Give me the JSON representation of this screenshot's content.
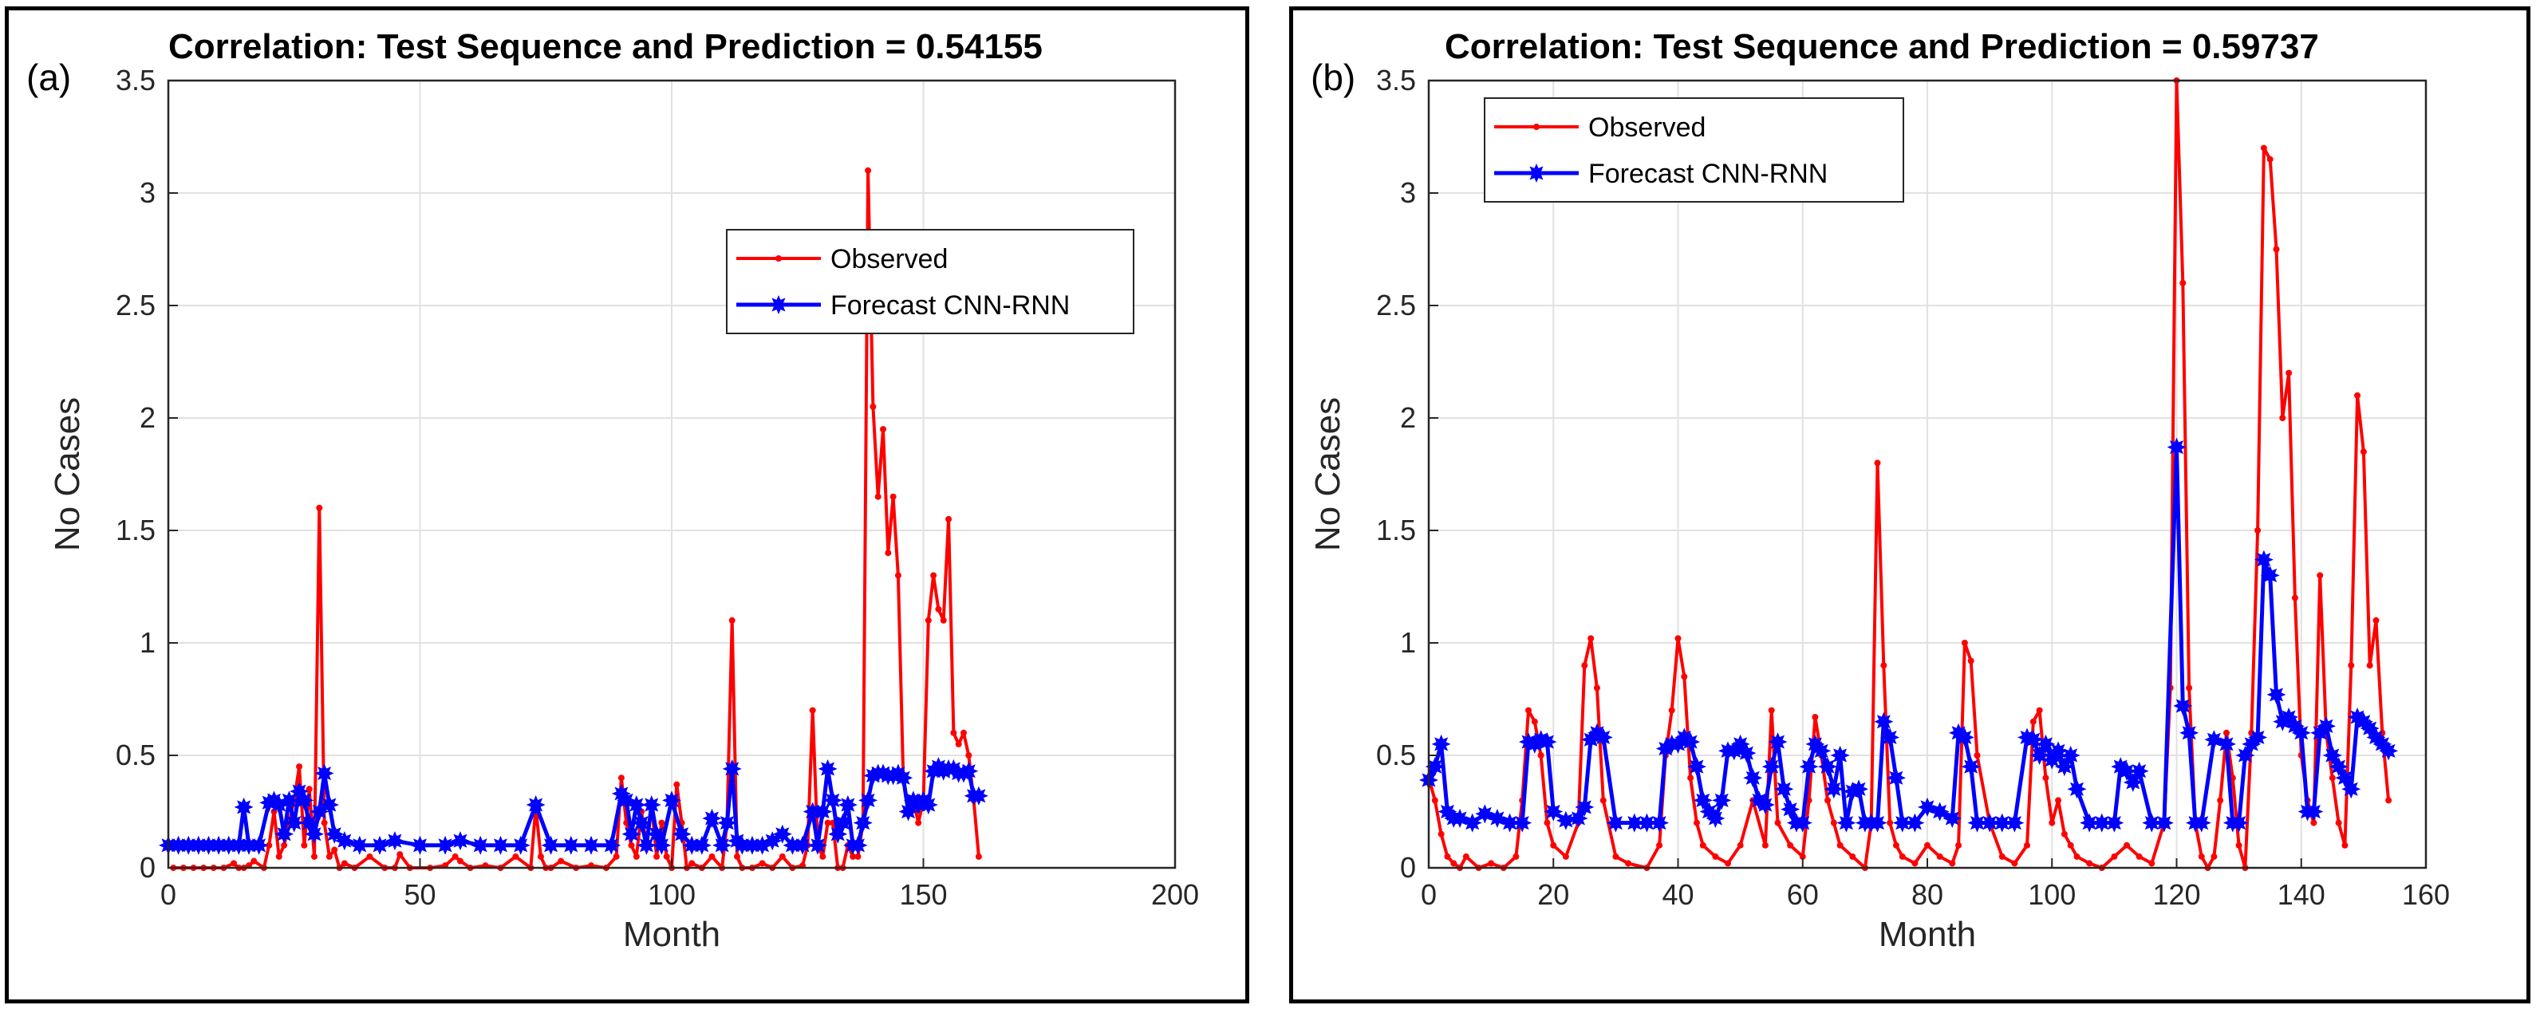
{
  "chart_data": [
    {
      "type": "line",
      "panel_tag": "(a)",
      "title": "Correlation: Test Sequence and  Prediction = 0.54155",
      "xlabel": "Month",
      "ylabel": "No Cases",
      "xlim": [
        0,
        200
      ],
      "ylim": [
        0,
        3.5
      ],
      "xticks": [
        0,
        50,
        100,
        150,
        200
      ],
      "yticks": [
        0,
        0.5,
        1,
        1.5,
        2,
        2.5,
        3,
        3.5
      ],
      "xtick_labels": [
        "0",
        "50",
        "100",
        "150",
        "200"
      ],
      "ytick_labels": [
        "0",
        "0.5",
        "1",
        "1.5",
        "2",
        "2.5",
        "3",
        "3.5"
      ],
      "grid": true,
      "legend_position": "upper-right-center",
      "colors": {
        "observed": "#ff0000",
        "forecast": "#0000ff"
      },
      "series": [
        {
          "name": "Observed",
          "marker": "dot",
          "x": [
            1,
            3,
            5,
            7,
            9,
            11,
            13,
            14,
            15,
            16,
            17,
            19,
            20,
            21,
            22,
            23,
            24,
            25,
            26,
            27,
            28,
            29,
            30,
            31,
            32,
            33,
            34,
            35,
            37,
            40,
            43,
            45,
            46,
            48,
            52,
            55,
            57,
            58,
            60,
            63,
            66,
            69,
            72,
            73,
            74,
            75,
            76,
            78,
            81,
            84,
            87,
            89,
            90,
            91,
            92,
            93,
            94,
            95,
            96,
            97,
            98,
            99,
            100,
            101,
            102,
            103,
            104,
            106,
            108,
            110,
            111,
            112,
            113,
            114,
            116,
            118,
            120,
            122,
            124,
            126,
            127,
            128,
            129,
            130,
            131,
            132,
            133,
            134,
            135,
            136,
            137,
            138,
            139,
            140,
            141,
            142,
            143,
            144,
            145,
            146,
            147,
            148,
            149,
            150,
            151,
            152,
            153,
            154,
            155,
            156,
            157,
            158,
            159,
            160,
            161
          ],
          "y": [
            0,
            0,
            0,
            0,
            0,
            0,
            0.02,
            0,
            0,
            0.01,
            0.03,
            0,
            0.1,
            0.25,
            0.05,
            0.1,
            0.2,
            0.3,
            0.45,
            0.1,
            0.35,
            0.05,
            1.6,
            0.2,
            0.05,
            0.08,
            0,
            0.02,
            0,
            0.05,
            0,
            0,
            0.06,
            0,
            0,
            0.01,
            0.05,
            0.03,
            0,
            0.01,
            0,
            0.05,
            0,
            0.27,
            0.05,
            0,
            0,
            0.03,
            0,
            0.01,
            0,
            0.05,
            0.4,
            0.2,
            0.1,
            0.05,
            0.25,
            0.1,
            0.28,
            0.05,
            0.2,
            0.05,
            0,
            0.37,
            0.2,
            0,
            0.02,
            0,
            0.05,
            0,
            0.2,
            1.1,
            0.05,
            0,
            0,
            0.02,
            0,
            0.05,
            0,
            0.01,
            0.1,
            0.7,
            0.1,
            0.05,
            0.2,
            0.2,
            0,
            0,
            0.1,
            0.05,
            0.05,
            0.2,
            3.1,
            2.05,
            1.65,
            1.95,
            1.4,
            1.65,
            1.3,
            0.4,
            0.25,
            0.3,
            0.2,
            0.3,
            1.1,
            1.3,
            1.15,
            1.1,
            1.55,
            0.6,
            0.55,
            0.6,
            0.5,
            0.3,
            0.05
          ]
        },
        {
          "name": "Forecast CNN-RNN",
          "marker": "star",
          "x": [
            0,
            2,
            4,
            6,
            8,
            10,
            12,
            14,
            15,
            16,
            18,
            20,
            21,
            22,
            23,
            24,
            25,
            26,
            27,
            28,
            29,
            30,
            31,
            32,
            33,
            35,
            38,
            42,
            45,
            50,
            55,
            58,
            62,
            66,
            70,
            73,
            76,
            80,
            84,
            88,
            90,
            91,
            92,
            93,
            94,
            95,
            96,
            97,
            98,
            100,
            102,
            104,
            106,
            108,
            110,
            111,
            112,
            113,
            114,
            116,
            118,
            120,
            122,
            124,
            126,
            128,
            129,
            130,
            131,
            132,
            133,
            134,
            135,
            136,
            137,
            138,
            139,
            140,
            141,
            142,
            143,
            144,
            145,
            146,
            147,
            148,
            149,
            150,
            151,
            152,
            153,
            154,
            155,
            156,
            157,
            158,
            159,
            160,
            161
          ],
          "y": [
            0.1,
            0.1,
            0.1,
            0.1,
            0.1,
            0.1,
            0.1,
            0.1,
            0.27,
            0.1,
            0.1,
            0.29,
            0.3,
            0.28,
            0.15,
            0.3,
            0.2,
            0.34,
            0.3,
            0.2,
            0.15,
            0.25,
            0.42,
            0.28,
            0.15,
            0.12,
            0.1,
            0.1,
            0.12,
            0.1,
            0.1,
            0.12,
            0.1,
            0.1,
            0.1,
            0.28,
            0.1,
            0.1,
            0.1,
            0.1,
            0.33,
            0.3,
            0.15,
            0.28,
            0.2,
            0.1,
            0.28,
            0.15,
            0.1,
            0.3,
            0.15,
            0.1,
            0.1,
            0.22,
            0.1,
            0.2,
            0.44,
            0.12,
            0.1,
            0.1,
            0.1,
            0.12,
            0.15,
            0.1,
            0.1,
            0.25,
            0.1,
            0.25,
            0.44,
            0.3,
            0.15,
            0.2,
            0.28,
            0.1,
            0.1,
            0.2,
            0.3,
            0.41,
            0.42,
            0.42,
            0.41,
            0.41,
            0.42,
            0.4,
            0.25,
            0.3,
            0.28,
            0.3,
            0.28,
            0.43,
            0.45,
            0.43,
            0.44,
            0.44,
            0.42,
            0.42,
            0.43,
            0.32,
            0.32
          ]
        }
      ]
    },
    {
      "type": "line",
      "panel_tag": "(b)",
      "title": "Correlation: Test Sequence  and Prediction = 0.59737",
      "xlabel": "Month",
      "ylabel": "No Cases",
      "xlim": [
        0,
        160
      ],
      "ylim": [
        0,
        3.5
      ],
      "xticks": [
        0,
        20,
        40,
        60,
        80,
        100,
        120,
        140,
        160
      ],
      "yticks": [
        0,
        0.5,
        1,
        1.5,
        2,
        2.5,
        3,
        3.5
      ],
      "xtick_labels": [
        "0",
        "20",
        "40",
        "60",
        "80",
        "100",
        "120",
        "140",
        "160"
      ],
      "ytick_labels": [
        "0",
        "0.5",
        "1",
        "1.5",
        "2",
        "2.5",
        "3",
        "3.5"
      ],
      "grid": true,
      "legend_position": "top-left",
      "colors": {
        "observed": "#ff0000",
        "forecast": "#0000ff"
      },
      "series": [
        {
          "name": "Observed",
          "marker": "dot",
          "x": [
            0,
            1,
            2,
            3,
            4,
            5,
            6,
            8,
            10,
            12,
            14,
            15,
            16,
            17,
            18,
            19,
            20,
            22,
            24,
            25,
            26,
            27,
            28,
            30,
            32,
            35,
            37,
            38,
            39,
            40,
            41,
            42,
            43,
            44,
            46,
            48,
            50,
            52,
            54,
            55,
            56,
            58,
            60,
            61,
            62,
            63,
            64,
            65,
            66,
            68,
            70,
            71,
            72,
            73,
            74,
            75,
            76,
            78,
            80,
            82,
            84,
            85,
            86,
            87,
            88,
            90,
            92,
            94,
            96,
            97,
            98,
            99,
            100,
            101,
            102,
            103,
            104,
            106,
            108,
            110,
            112,
            114,
            116,
            118,
            119,
            120,
            121,
            122,
            123,
            124,
            125,
            126,
            127,
            128,
            129,
            130,
            131,
            132,
            133,
            134,
            135,
            136,
            137,
            138,
            139,
            140,
            141,
            142,
            143,
            144,
            145,
            146,
            147,
            148,
            149,
            150,
            151,
            152,
            153,
            154
          ],
          "y": [
            0.4,
            0.3,
            0.15,
            0.05,
            0.02,
            0,
            0.05,
            0,
            0.02,
            0,
            0.05,
            0.3,
            0.7,
            0.65,
            0.5,
            0.2,
            0.1,
            0.05,
            0.2,
            0.9,
            1.02,
            0.8,
            0.3,
            0.05,
            0.02,
            0,
            0.1,
            0.5,
            0.7,
            1.02,
            0.85,
            0.4,
            0.2,
            0.1,
            0.05,
            0.02,
            0.1,
            0.3,
            0.1,
            0.7,
            0.2,
            0.1,
            0.05,
            0.3,
            0.67,
            0.5,
            0.3,
            0.2,
            0.1,
            0.05,
            0,
            0.2,
            1.8,
            0.9,
            0.2,
            0.1,
            0.05,
            0.02,
            0.1,
            0.05,
            0.02,
            0.1,
            1.0,
            0.92,
            0.5,
            0.2,
            0.05,
            0.02,
            0.1,
            0.65,
            0.7,
            0.4,
            0.2,
            0.3,
            0.15,
            0.1,
            0.05,
            0.02,
            0,
            0.05,
            0.1,
            0.05,
            0.02,
            0.2,
            0.8,
            3.5,
            2.6,
            0.8,
            0.2,
            0.05,
            0,
            0.05,
            0.3,
            0.6,
            0.4,
            0.1,
            0,
            0.6,
            1.5,
            3.2,
            3.15,
            2.75,
            2.0,
            2.2,
            1.2,
            0.5,
            0.3,
            0.2,
            1.3,
            0.6,
            0.4,
            0.2,
            0.1,
            0.9,
            2.1,
            1.85,
            0.9,
            1.1,
            0.6,
            0.3
          ]
        },
        {
          "name": "Forecast CNN-RNN",
          "marker": "star",
          "x": [
            0,
            1,
            2,
            3,
            4,
            5,
            7,
            9,
            11,
            13,
            15,
            16,
            17,
            18,
            19,
            20,
            22,
            24,
            25,
            26,
            27,
            28,
            30,
            33,
            35,
            37,
            38,
            39,
            40,
            41,
            42,
            43,
            44,
            45,
            46,
            47,
            48,
            49,
            50,
            51,
            52,
            53,
            54,
            55,
            56,
            57,
            58,
            59,
            60,
            61,
            62,
            63,
            64,
            65,
            66,
            67,
            68,
            69,
            70,
            71,
            72,
            73,
            74,
            75,
            76,
            78,
            80,
            82,
            84,
            85,
            86,
            87,
            88,
            90,
            92,
            94,
            96,
            97,
            98,
            99,
            100,
            101,
            102,
            103,
            104,
            106,
            108,
            110,
            111,
            112,
            113,
            114,
            116,
            118,
            120,
            121,
            122,
            123,
            124,
            126,
            128,
            129,
            130,
            131,
            132,
            133,
            134,
            135,
            136,
            137,
            138,
            139,
            140,
            141,
            142,
            143,
            144,
            145,
            146,
            147,
            148,
            149,
            150,
            151,
            152,
            153,
            154
          ],
          "y": [
            0.39,
            0.45,
            0.55,
            0.25,
            0.22,
            0.22,
            0.2,
            0.24,
            0.22,
            0.2,
            0.2,
            0.56,
            0.55,
            0.57,
            0.56,
            0.25,
            0.21,
            0.22,
            0.27,
            0.57,
            0.6,
            0.58,
            0.2,
            0.2,
            0.2,
            0.2,
            0.53,
            0.55,
            0.55,
            0.58,
            0.56,
            0.45,
            0.3,
            0.25,
            0.22,
            0.3,
            0.52,
            0.52,
            0.55,
            0.51,
            0.4,
            0.3,
            0.28,
            0.45,
            0.56,
            0.35,
            0.26,
            0.2,
            0.2,
            0.45,
            0.55,
            0.52,
            0.45,
            0.35,
            0.5,
            0.2,
            0.34,
            0.35,
            0.2,
            0.2,
            0.2,
            0.65,
            0.58,
            0.4,
            0.2,
            0.2,
            0.27,
            0.25,
            0.22,
            0.6,
            0.58,
            0.45,
            0.2,
            0.2,
            0.2,
            0.2,
            0.58,
            0.57,
            0.5,
            0.55,
            0.48,
            0.52,
            0.45,
            0.5,
            0.35,
            0.2,
            0.2,
            0.2,
            0.45,
            0.43,
            0.38,
            0.43,
            0.2,
            0.2,
            1.87,
            0.72,
            0.6,
            0.2,
            0.2,
            0.57,
            0.55,
            0.2,
            0.2,
            0.5,
            0.55,
            0.58,
            1.37,
            1.3,
            0.77,
            0.65,
            0.67,
            0.63,
            0.6,
            0.25,
            0.25,
            0.6,
            0.63,
            0.5,
            0.45,
            0.4,
            0.35,
            0.67,
            0.65,
            0.62,
            0.58,
            0.55,
            0.52
          ]
        }
      ]
    }
  ]
}
